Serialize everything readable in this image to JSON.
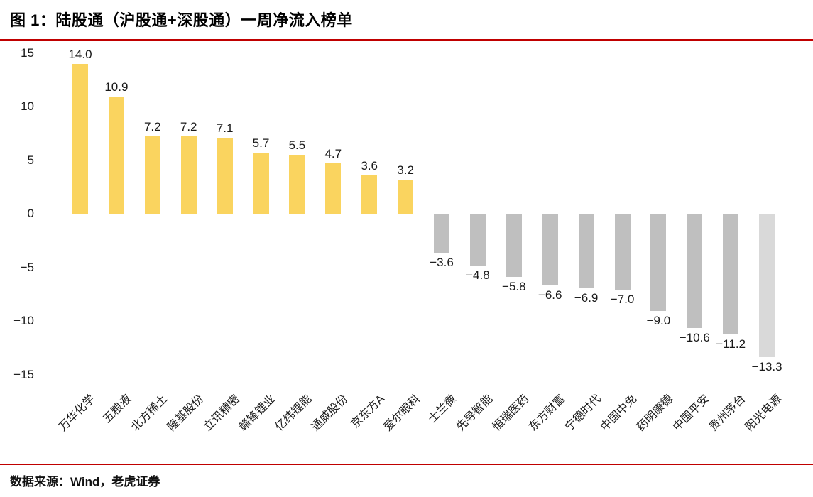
{
  "title": "图 1：陆股通（沪股通+深股通）一周净流入榜单",
  "footer": "数据来源：Wind，老虎证券",
  "colors": {
    "accent_red": "#C00000",
    "positive_bar": "#FAD45F",
    "negative_bar": "#BFBFBF",
    "negative_bar_light": "#D9D9D9",
    "zero_line": "#D9D9D9",
    "text": "#1A1A1A"
  },
  "chart_data": {
    "type": "bar",
    "title": "图 1：陆股通（沪股通+深股通）一周净流入榜单",
    "xlabel": "",
    "ylabel": "",
    "categories": [
      "万华化学",
      "五粮液",
      "北方稀土",
      "隆基股份",
      "立讯精密",
      "赣锋锂业",
      "亿纬锂能",
      "通威股份",
      "京东方A",
      "爱尔眼科",
      "士兰微",
      "先导智能",
      "恒瑞医药",
      "东方财富",
      "宁德时代",
      "中国中免",
      "药明康德",
      "中国平安",
      "贵州茅台",
      "阳光电源"
    ],
    "values": [
      14.0,
      10.9,
      7.2,
      7.2,
      7.1,
      5.7,
      5.5,
      4.7,
      3.6,
      3.2,
      -3.6,
      -4.8,
      -5.8,
      -6.6,
      -6.9,
      -7.0,
      -9.0,
      -10.6,
      -11.2,
      -13.3
    ],
    "value_labels": [
      "14.0",
      "10.9",
      "7.2",
      "7.2",
      "7.1",
      "5.7",
      "5.5",
      "4.7",
      "3.6",
      "3.2",
      "−3.6",
      "−4.8",
      "−5.8",
      "−6.6",
      "−6.9",
      "−7.0",
      "−9.0",
      "−10.6",
      "−11.2",
      "−13.3"
    ],
    "ytick_values": [
      15,
      10,
      5,
      0,
      -5,
      -10,
      -15
    ],
    "ytick_labels": [
      "15",
      "10",
      "5",
      "0",
      "−5",
      "−10",
      "−15"
    ],
    "ylim": [
      -15,
      15
    ],
    "grid": false,
    "legend": "none",
    "bar_color_positive": "#FAD45F",
    "bar_color_negative": "#BFBFBF",
    "last_bar_color": "#D9D9D9"
  }
}
